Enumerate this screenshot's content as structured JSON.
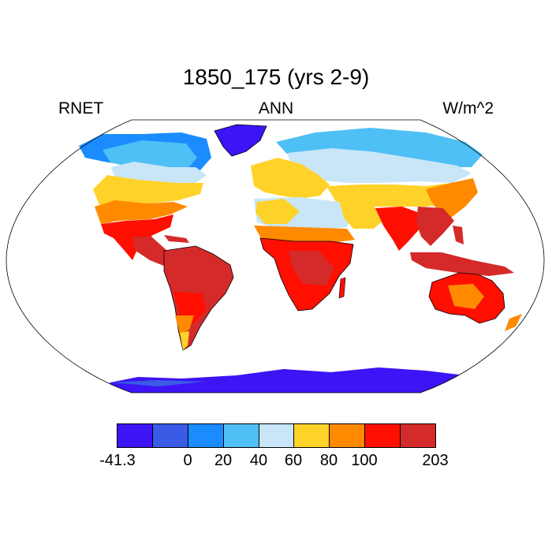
{
  "title": "1850_175 (yrs 2-9)",
  "left_label": "RNET",
  "center_label": "ANN",
  "right_label": "W/m^2",
  "colorbar": {
    "colors": [
      "#3d14f5",
      "#3a5be6",
      "#1a8cff",
      "#4fc0f5",
      "#c8e6f8",
      "#ffd22a",
      "#ff8a00",
      "#ff0f00",
      "#d42a2a"
    ],
    "tick_labels": [
      "-41.3",
      "0",
      "20",
      "40",
      "60",
      "80",
      "100",
      "203"
    ]
  }
}
